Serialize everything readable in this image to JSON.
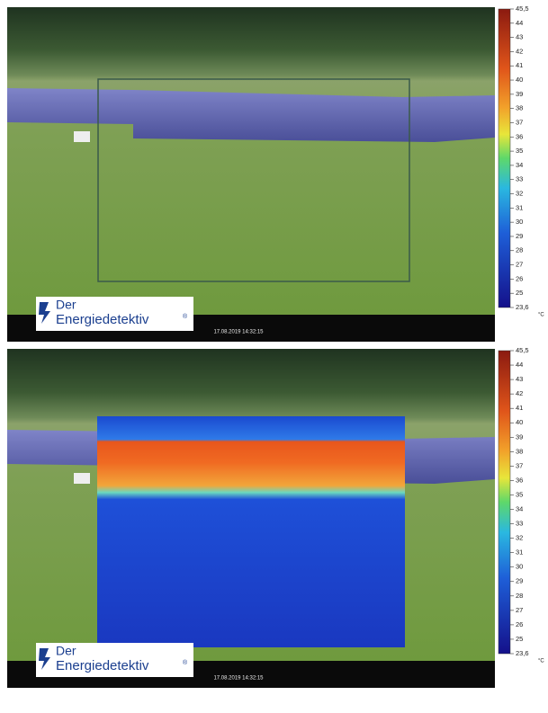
{
  "panels": [
    {
      "logo": {
        "line1": "Der",
        "line2": "Energiedetektiv",
        "mark": "®"
      },
      "timestamp": "17.08.2019 14:32:15",
      "scale": {
        "labels": [
          "45,5",
          "44",
          "43",
          "42",
          "41",
          "40",
          "39",
          "38",
          "37",
          "36",
          "35",
          "34",
          "33",
          "32",
          "31",
          "30",
          "29",
          "28",
          "27",
          "26",
          "25",
          "23,6"
        ],
        "unit": "°C"
      }
    },
    {
      "logo": {
        "line1": "Der",
        "line2": "Energiedetektiv",
        "mark": "®"
      },
      "timestamp": "17.08.2019 14:32:15",
      "scale": {
        "labels": [
          "45,5",
          "44",
          "43",
          "42",
          "41",
          "40",
          "39",
          "38",
          "37",
          "36",
          "35",
          "34",
          "33",
          "32",
          "31",
          "30",
          "29",
          "28",
          "27",
          "26",
          "25",
          "23,6"
        ],
        "unit": "°C"
      }
    }
  ]
}
